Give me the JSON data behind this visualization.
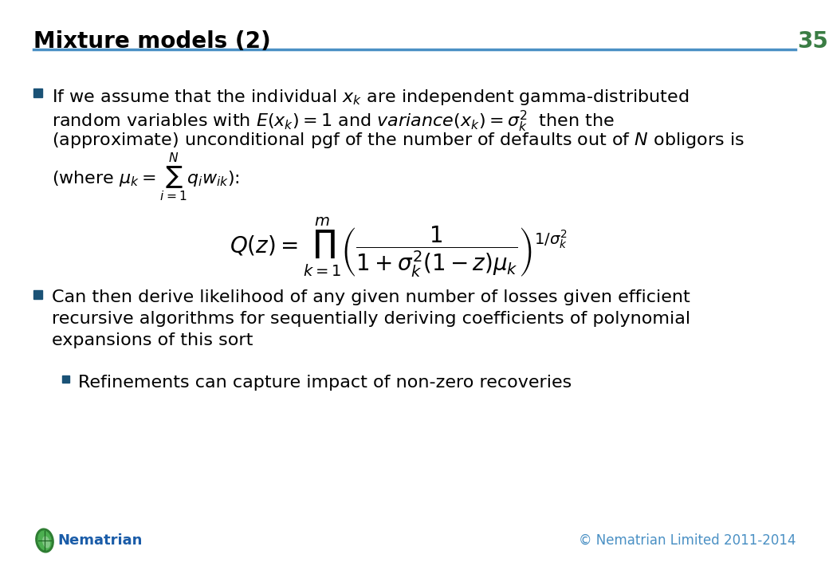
{
  "title": "Mixture models (2)",
  "slide_number": "35",
  "title_color": "#000000",
  "title_fontsize": 20,
  "slide_number_color": "#3a7d44",
  "header_line_color": "#4a90c4",
  "background_color": "#ffffff",
  "bullet_color": "#1a5276",
  "formula": "$Q(z) = \\prod_{k=1}^{m} \\left( \\dfrac{1}{1 + \\sigma_k^2 (1-z) \\mu_k} \\right)^{1/\\sigma_k^2}$",
  "formula_fontsize": 20,
  "footer_logo_text": "Nematrian",
  "footer_logo_color": "#1a5ca8",
  "footer_copyright": "© Nematrian Limited 2011-2014",
  "footer_copyright_color": "#4a90c4",
  "font_size_body": 16
}
